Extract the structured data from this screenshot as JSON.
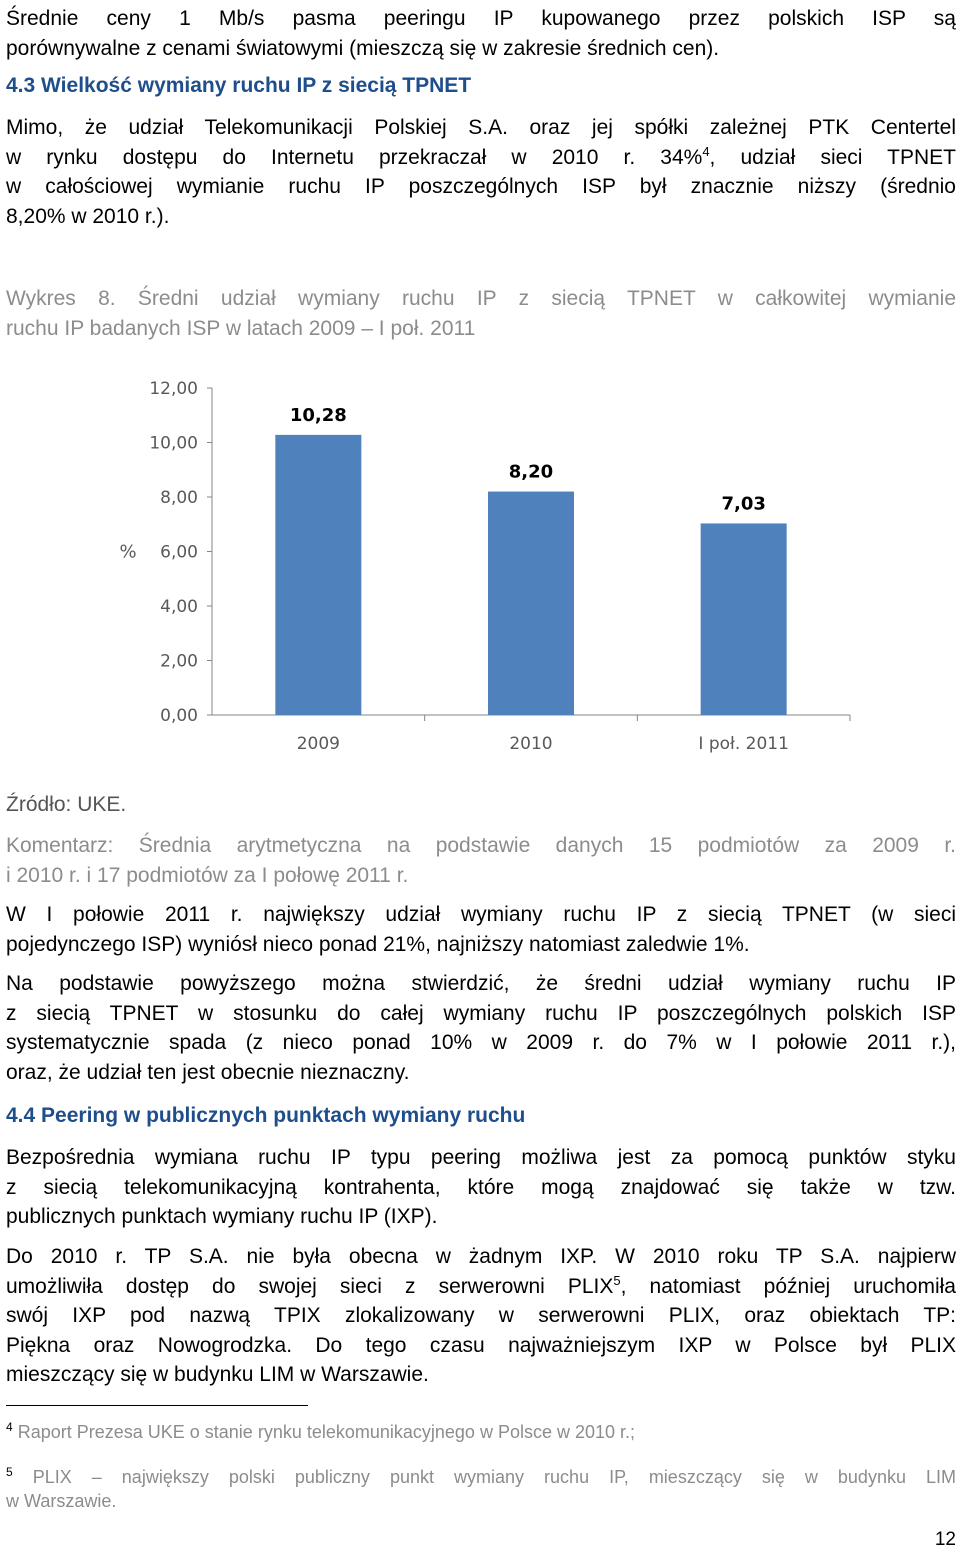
{
  "intro": {
    "line1": "Średnie ceny 1 Mb/s pasma peeringu IP kupowanego przez polskich ISP są",
    "line2": "porównywalne z cenami światowymi (mieszczą się w zakresie średnich cen)."
  },
  "section_43": {
    "number": "4.3",
    "title": "Wielkość wymiany ruchu IP z siecią TPNET"
  },
  "para1": {
    "line1": "Mimo, że udział Telekomunikacji Polskiej S.A. oraz jej spółki zależnej PTK Centertel",
    "line2a": "w rynku dostępu do Internetu przekraczał w 2010 r. 34%",
    "line2_sup": "4",
    "line2b": ", udział sieci TPNET",
    "line3": "w całościowej wymianie ruchu IP poszczególnych ISP był znacznie niższy (średnio",
    "line4": "8,20% w 2010 r.)."
  },
  "chart_caption": {
    "line1": "Wykres 8. Średni udział wymiany ruchu IP z siecią TPNET w całkowitej wymianie",
    "line2": "ruchu IP badanych ISP w latach 2009 – I poł. 2011"
  },
  "chart_data": {
    "type": "bar",
    "categories": [
      "2009",
      "2010",
      "I poł. 2011"
    ],
    "values": [
      10.28,
      8.2,
      7.03
    ],
    "data_labels": [
      "10,28",
      "8,20",
      "7,03"
    ],
    "ylabel": "%",
    "ylim": [
      0,
      12
    ],
    "yticks": [
      "0,00",
      "2,00",
      "4,00",
      "6,00",
      "8,00",
      "10,00",
      "12,00"
    ],
    "bar_color": "#4f81bd",
    "grid": false,
    "legend": false
  },
  "source": "Źródło: UKE.",
  "comment": {
    "line1": "Komentarz: Średnia arytmetyczna na podstawie danych 15 podmiotów za 2009 r.",
    "line2": "i 2010 r. i 17 podmiotów za I połowę 2011 r."
  },
  "para2": {
    "line1": "W I połowie 2011 r. największy udział wymiany ruchu IP z siecią TPNET (w sieci",
    "line2": "pojedynczego ISP) wyniósł nieco ponad 21%, najniższy natomiast zaledwie 1%."
  },
  "para3": {
    "line1": "Na podstawie powyższego można stwierdzić, że średni udział wymiany ruchu IP",
    "line2": "z siecią TPNET w stosunku do całej wymiany ruchu IP poszczególnych polskich ISP",
    "line3": "systematycznie spada (z nieco ponad 10% w 2009 r. do 7% w I połowie 2011 r.),",
    "line4": "oraz, że udział ten jest obecnie nieznaczny."
  },
  "section_44": {
    "number": "4.4",
    "title": "Peering w publicznych punktach wymiany ruchu"
  },
  "para4": {
    "line1": "Bezpośrednia wymiana ruchu IP typu peering możliwa jest za pomocą punktów styku",
    "line2": "z siecią telekomunikacyjną kontrahenta, które mogą znajdować się także w tzw.",
    "line3": "publicznych punktach wymiany ruchu IP (IXP)."
  },
  "para5": {
    "line1": "Do 2010 r. TP S.A. nie była obecna w żadnym IXP. W 2010 roku TP S.A. najpierw",
    "line2a": "umożliwiła dostęp do swojej sieci z serwerowni PLIX",
    "line2_sup": "5",
    "line2b": ", natomiast później uruchomiła",
    "line3": "swój IXP pod nazwą TPIX zlokalizowany w serwerowni PLIX, oraz obiektach TP:",
    "line4": "Piękna oraz Nowogrodzka. Do tego czasu najważniejszym IXP w Polsce był PLIX",
    "line5": "mieszczący się w budynku LIM w Warszawie."
  },
  "footnotes": [
    {
      "marker": "4",
      "line1": "Raport Prezesa UKE o stanie rynku telekomunikacyjnego w Polsce w 2010 r.;",
      "line2": ""
    },
    {
      "marker": "5",
      "line1": "PLIX – największy polski publiczny punkt wymiany ruchu IP, mieszczący się w budynku LIM",
      "line2": "w Warszawie."
    }
  ],
  "page_number": "12"
}
